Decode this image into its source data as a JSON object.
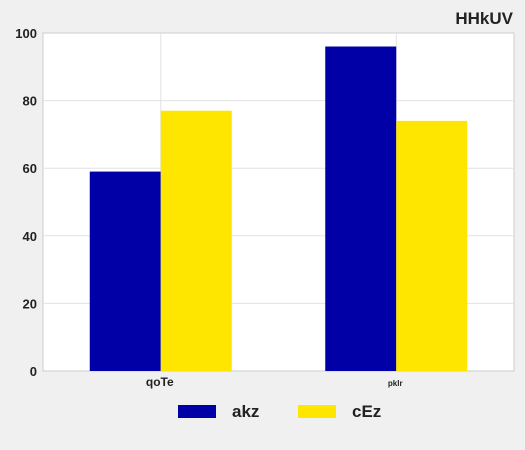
{
  "chart_data": {
    "type": "bar",
    "title": "HHkUV",
    "categories": [
      "qoTe",
      "pklr"
    ],
    "series": [
      {
        "name": "akz",
        "color": "#0000a6",
        "values": [
          59,
          96
        ]
      },
      {
        "name": "cEz",
        "color": "#ffe600",
        "values": [
          77,
          74
        ]
      }
    ],
    "ylim": [
      0,
      100
    ],
    "yticks": [
      0,
      20,
      40,
      60,
      80,
      100
    ],
    "grid": true,
    "legend_position": "bottom"
  }
}
